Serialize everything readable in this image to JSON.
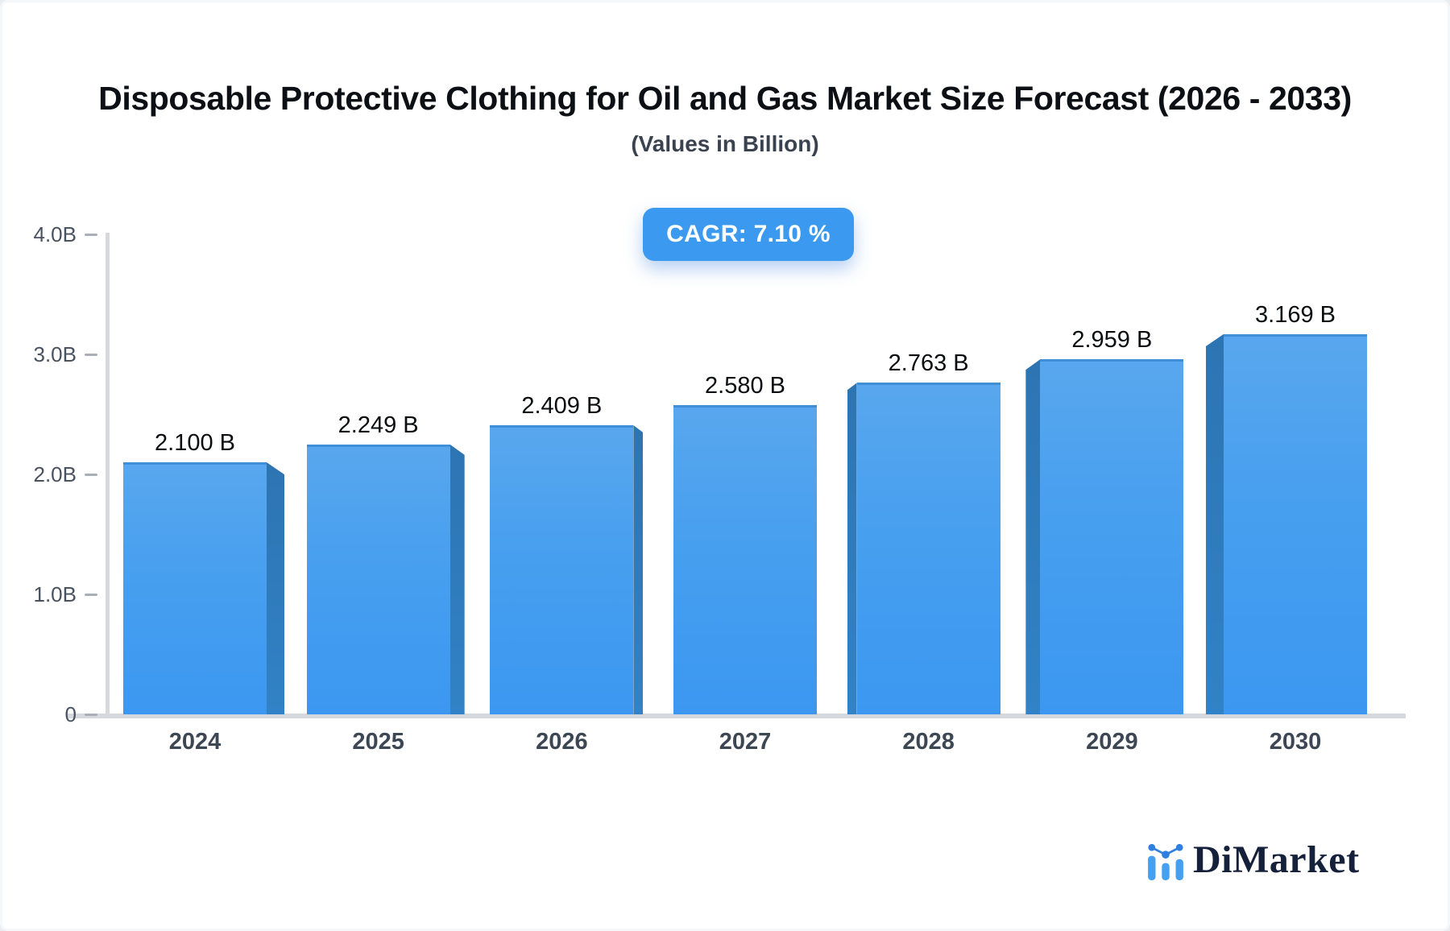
{
  "page": {
    "title": "Disposable Protective Clothing for Oil and Gas Market Size Forecast (2026 - 2033)",
    "subtitle": "(Values in Billion)",
    "cagr_badge": "CAGR: 7.10 %"
  },
  "chart_data": {
    "type": "bar",
    "title": "Disposable Protective Clothing for Oil and Gas Market Size Forecast (2026 - 2033)",
    "subtitle": "(Values in Billion)",
    "unit": "Billion",
    "cagr": "7.10 %",
    "categories": [
      "2024",
      "2025",
      "2026",
      "2027",
      "2028",
      "2029",
      "2030"
    ],
    "values": [
      2.1,
      2.249,
      2.409,
      2.58,
      2.763,
      2.959,
      3.169
    ],
    "bar_labels": [
      "2.100 B",
      "2.249 B",
      "2.409 B",
      "2.580 B",
      "2.763 B",
      "2.959 B",
      "3.169 B"
    ],
    "xlabel": "",
    "ylabel": "",
    "ylim": [
      0,
      4
    ],
    "y_ticks": [
      "0",
      "1.0B",
      "2.0B",
      "3.0B",
      "4.0B"
    ],
    "grid": false,
    "legend_position": "none",
    "bar_color": "#3b97f0",
    "bar_side_color": "#2d79ba"
  },
  "footer": {
    "brand": "DiMarket"
  }
}
